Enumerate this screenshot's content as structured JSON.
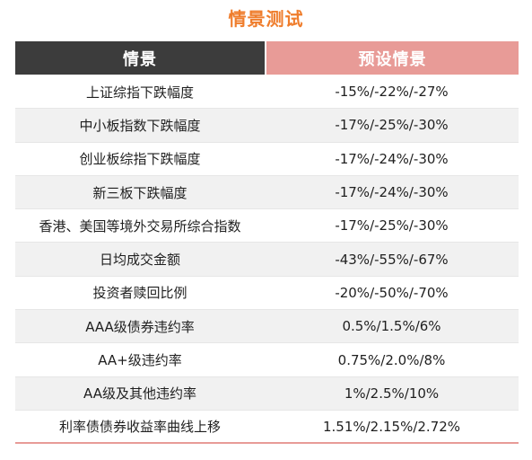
{
  "title": "情景测试",
  "table": {
    "headers": [
      "情景",
      "预设情景"
    ],
    "rows": [
      {
        "scenario": "上证综指下跌幅度",
        "preset": "-15%/-22%/-27%"
      },
      {
        "scenario": "中小板指数下跌幅度",
        "preset": "-17%/-25%/-30%"
      },
      {
        "scenario": "创业板综指下跌幅度",
        "preset": "-17%/-24%/-30%"
      },
      {
        "scenario": "新三板下跌幅度",
        "preset": "-17%/-24%/-30%"
      },
      {
        "scenario": "香港、美国等境外交易所综合指数",
        "preset": "-17%/-25%/-30%"
      },
      {
        "scenario": "日均成交金额",
        "preset": "-43%/-55%/-67%"
      },
      {
        "scenario": "投资者赎回比例",
        "preset": "-20%/-50%/-70%"
      },
      {
        "scenario": "AAA级债券违约率",
        "preset": "0.5%/1.5%/6%"
      },
      {
        "scenario": "AA+级违约率",
        "preset": "0.75%/2.0%/8%"
      },
      {
        "scenario": "AA级及其他违约率",
        "preset": "1%/2.5%/10%"
      },
      {
        "scenario": "利率债债券收益率曲线上移",
        "preset": "1.51%/2.15%/2.72%"
      }
    ]
  },
  "colors": {
    "title": "#ef7d2c",
    "header_left_bg": "#3c3c3c",
    "header_right_bg": "#e89b97",
    "stripe": "#f1f1f1"
  }
}
